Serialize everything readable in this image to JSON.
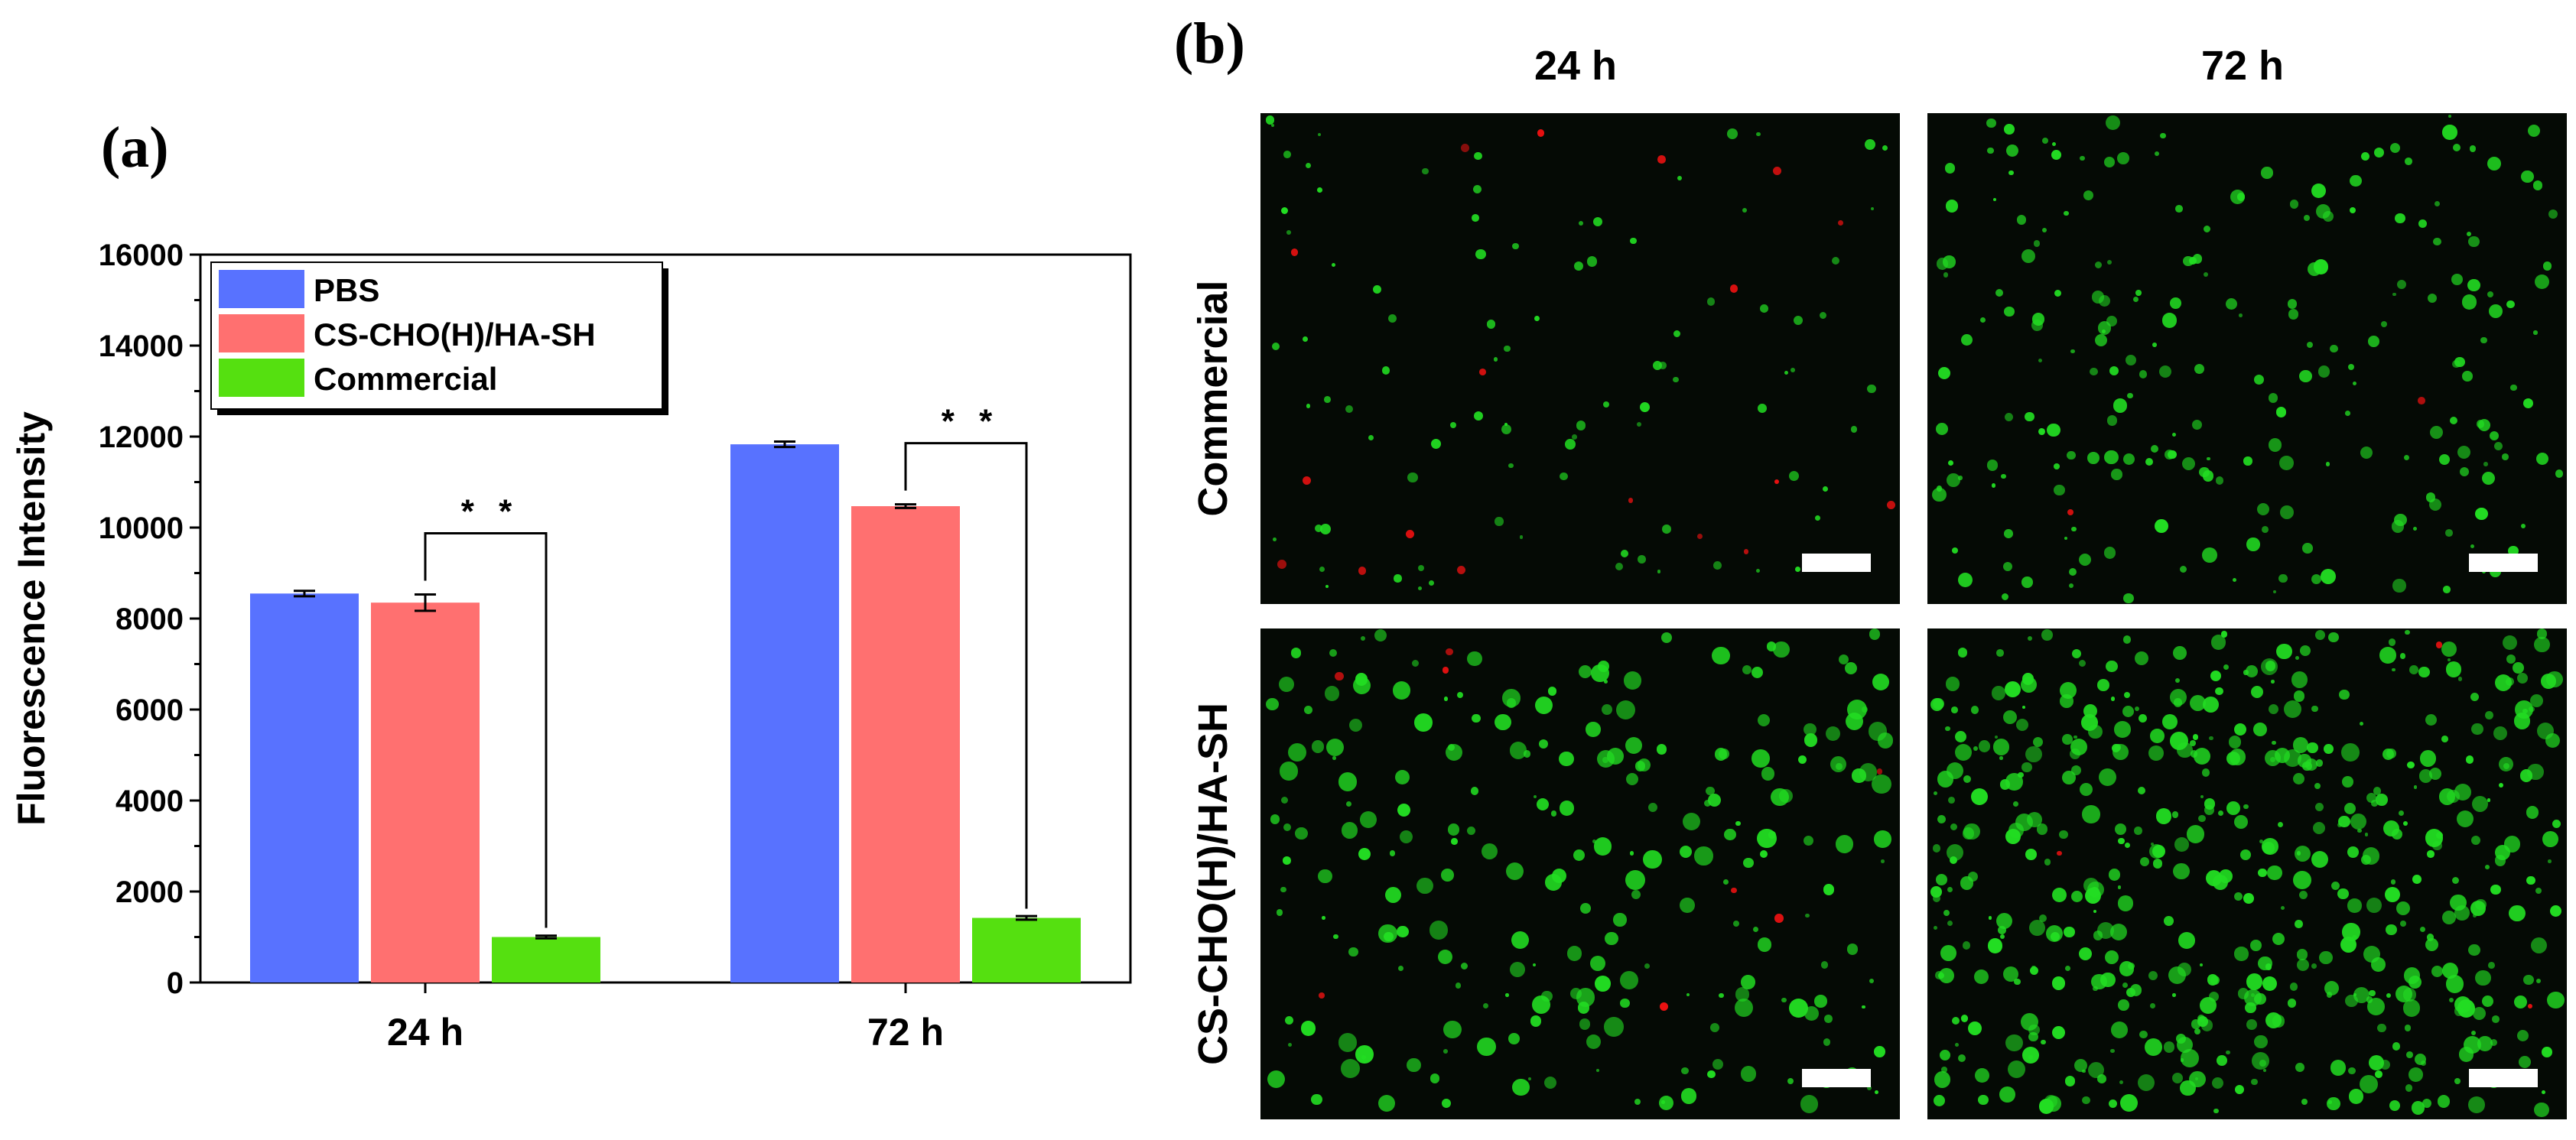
{
  "panel_a_label": "(a)",
  "panel_b_label": "(b)",
  "chart_data": {
    "type": "bar",
    "categories": [
      "24 h",
      "72 h"
    ],
    "series": [
      {
        "name": "PBS",
        "color": "#5872ff",
        "values": [
          8550,
          11830
        ],
        "errors": [
          60,
          60
        ]
      },
      {
        "name": "CS-CHO(H)/HA-SH",
        "color": "#ff7070",
        "values": [
          8350,
          10470
        ],
        "errors": [
          180,
          40
        ]
      },
      {
        "name": "Commercial",
        "color": "#55e010",
        "values": [
          1000,
          1420
        ],
        "errors": [
          30,
          40
        ]
      }
    ],
    "xlabel": "",
    "ylabel": "Fluorescence Intensity",
    "ylim": [
      0,
      16000
    ],
    "yticks": [
      "0",
      "2000",
      "4000",
      "6000",
      "8000",
      "10000",
      "12000",
      "14000",
      "16000"
    ],
    "legend": "top-left",
    "significance": [
      {
        "category": "24 h",
        "text": "* *"
      },
      {
        "category": "72 h",
        "text": "* *"
      }
    ]
  },
  "micrographs": {
    "columns": [
      "24 h",
      "72 h"
    ],
    "rows": [
      "Commercial",
      "CS-CHO(H)/HA-SH"
    ],
    "live_color": "#22dd22",
    "dead_color": "#ee1111"
  }
}
